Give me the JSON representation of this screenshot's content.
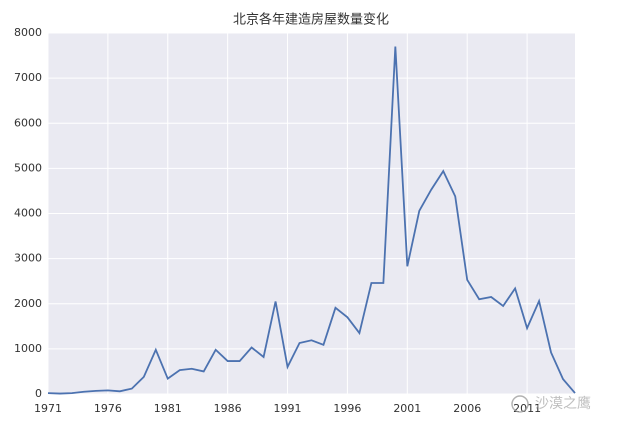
{
  "chart_data": {
    "type": "line",
    "title": "北京各年建造房屋数量变化",
    "x": [
      1971,
      1972,
      1973,
      1974,
      1975,
      1976,
      1977,
      1978,
      1979,
      1980,
      1981,
      1982,
      1983,
      1984,
      1985,
      1986,
      1987,
      1988,
      1989,
      1990,
      1991,
      1992,
      1993,
      1994,
      1995,
      1996,
      1997,
      1998,
      1999,
      2000,
      2001,
      2002,
      2003,
      2004,
      2005,
      2006,
      2007,
      2008,
      2009,
      2010,
      2011,
      2012,
      2013,
      2014,
      2015
    ],
    "series": [
      {
        "color": "#4c72b0",
        "values": [
          20,
          10,
          20,
          50,
          70,
          80,
          60,
          120,
          380,
          980,
          340,
          530,
          560,
          500,
          980,
          730,
          730,
          1030,
          820,
          2050,
          600,
          1130,
          1190,
          1090,
          1910,
          1700,
          1350,
          2460,
          2460,
          7700,
          2830,
          4060,
          4530,
          4940,
          4380,
          2530,
          2100,
          2150,
          1950,
          2340,
          1460,
          2060,
          920,
          330,
          20
        ]
      }
    ],
    "xlim": [
      1971,
      2015
    ],
    "xticks": [
      1971,
      1976,
      1981,
      1986,
      1991,
      1996,
      2001,
      2006,
      2011
    ],
    "ylim": [
      0,
      8000
    ],
    "yticks": [
      0,
      1000,
      2000,
      3000,
      4000,
      5000,
      6000,
      7000,
      8000
    ],
    "grid": true,
    "watermark": "沙漠之鹰"
  }
}
